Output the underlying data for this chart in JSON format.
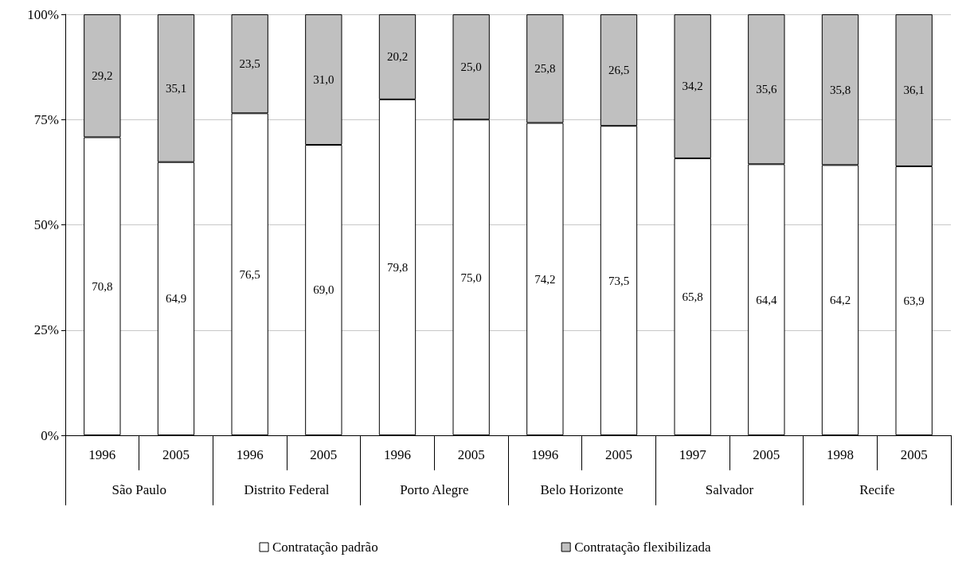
{
  "chart_data": {
    "type": "bar",
    "stacked": true,
    "categories": [
      "1996",
      "2005",
      "1996",
      "2005",
      "1996",
      "2005",
      "1996",
      "2005",
      "1997",
      "2005",
      "1998",
      "2005"
    ],
    "annotations": [
      "São Paulo",
      "Distrito Federal",
      "Porto Alegre",
      "Belo Horizonte",
      "Salvador",
      "Recife"
    ],
    "series": [
      {
        "name": "Contratação padrão",
        "color": "#ffffff",
        "values": [
          70.8,
          64.9,
          76.5,
          69.0,
          79.8,
          75.0,
          74.2,
          73.5,
          65.8,
          64.4,
          64.2,
          63.9
        ],
        "value_labels": [
          "70,8",
          "64,9",
          "76,5",
          "69,0",
          "79,8",
          "75,0",
          "74,2",
          "73,5",
          "65,8",
          "64,4",
          "64,2",
          "63,9"
        ]
      },
      {
        "name": "Contratação flexibilizada",
        "color": "#c0c0c0",
        "values": [
          29.2,
          35.1,
          23.5,
          31.0,
          20.2,
          25.0,
          25.8,
          26.5,
          34.2,
          35.6,
          35.8,
          36.1
        ],
        "value_labels": [
          "29,2",
          "35,1",
          "23,5",
          "31,0",
          "20,2",
          "25,0",
          "25,8",
          "26,5",
          "34,2",
          "35,6",
          "35,8",
          "36,1"
        ]
      }
    ],
    "ylim": [
      0,
      100
    ],
    "yticks": [
      {
        "value": 0,
        "label": "0%"
      },
      {
        "value": 25,
        "label": "25%"
      },
      {
        "value": 50,
        "label": "50%"
      },
      {
        "value": 75,
        "label": "75%"
      },
      {
        "value": 100,
        "label": "100%"
      }
    ],
    "grid": "y",
    "legend": "bottom"
  }
}
